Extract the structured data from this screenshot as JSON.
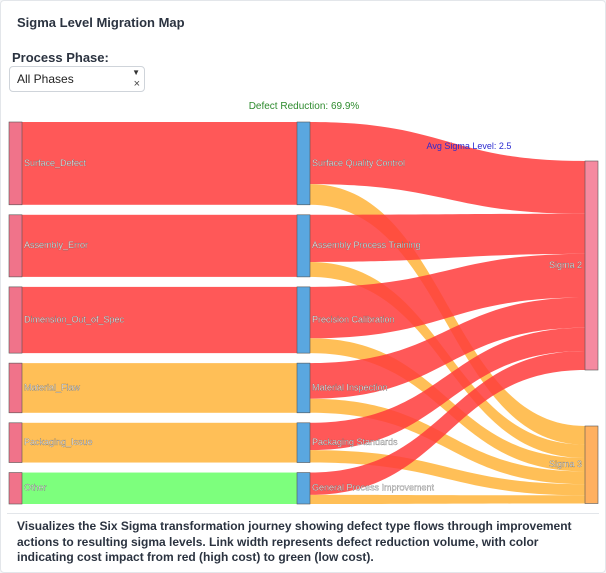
{
  "page": {
    "title": "Sigma Level Migration Map",
    "phase_label": "Process Phase:",
    "phase_value": "All Phases",
    "description": "Visualizes the Six Sigma transformation journey showing defect type flows through improvement actions to resulting sigma levels. Link width represents defect reduction volume, with color indicating cost impact from red (high cost) to green (low cost)."
  },
  "chart_data": {
    "type": "sankey",
    "annotations": {
      "defect_reduction": "Defect Reduction: 69.9%",
      "avg_sigma": "Avg Sigma Level: 2.5"
    },
    "colors": {
      "high_cost": "#ff3b3b",
      "medium_cost": "#ffb43a",
      "low_cost": "#66ff66",
      "defect_node_high": "#f0738a",
      "action_node": "#5aa7e0",
      "sigma_node": "#f58aa0",
      "sigma3_node": "#ffb060",
      "annotation_green": "#2e8b2e",
      "annotation_blue": "#2a2ad0"
    },
    "defects": [
      {
        "name": "Surface_Defect",
        "value": 100,
        "cost": "high"
      },
      {
        "name": "Assembly_Error",
        "value": 75,
        "cost": "high"
      },
      {
        "name": "Dimension_Out_of_Spec",
        "value": 80,
        "cost": "high"
      },
      {
        "name": "Material_Flaw",
        "value": 60,
        "cost": "medium"
      },
      {
        "name": "Packaging_Issue",
        "value": 48,
        "cost": "medium"
      },
      {
        "name": "Other",
        "value": 38,
        "cost": "low"
      }
    ],
    "actions": [
      "Surface Quality Control",
      "Assembly Process Training",
      "Precision Calibration",
      "Material Inspection",
      "Packaging Standards",
      "General Process Improvement"
    ],
    "sigma_levels": [
      "Sigma 2",
      "Sigma 3"
    ],
    "action_outflows": [
      {
        "sigma2": 75,
        "sigma3": 25
      },
      {
        "sigma2": 57,
        "sigma3": 18
      },
      {
        "sigma2": 62,
        "sigma3": 18
      },
      {
        "sigma2": 43,
        "sigma3": 17
      },
      {
        "sigma2": 33,
        "sigma3": 15
      },
      {
        "sigma2": 27,
        "sigma3": 11
      }
    ]
  }
}
